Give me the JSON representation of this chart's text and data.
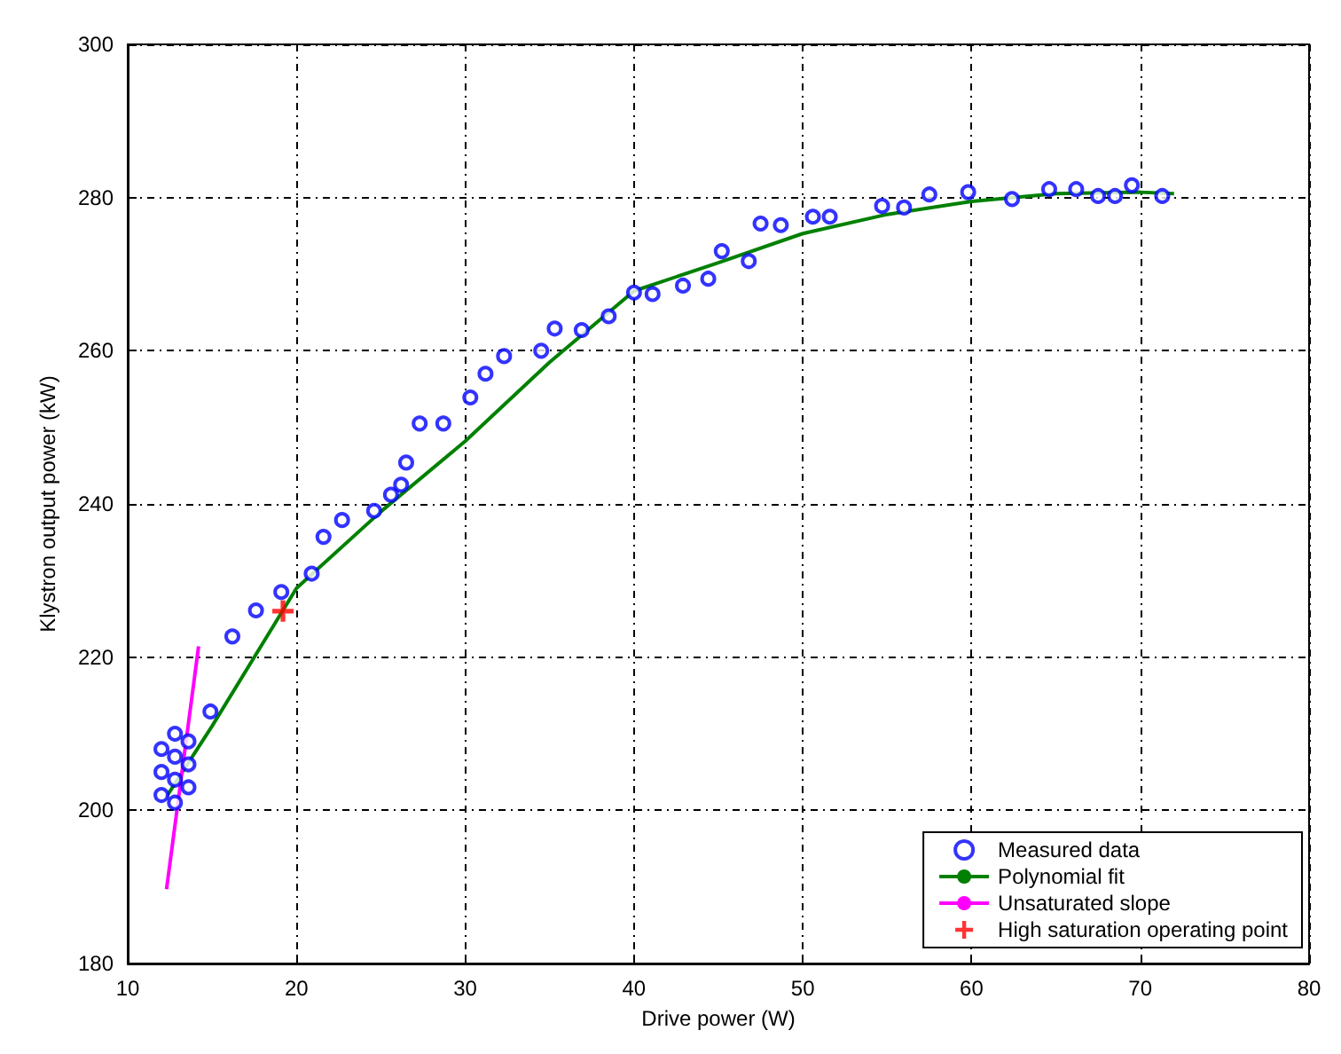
{
  "chart_data": {
    "type": "scatter",
    "xlabel": "Drive power (W)",
    "ylabel": "Klystron output power (kW)",
    "xlim": [
      10,
      80
    ],
    "xticks": [
      10,
      20,
      30,
      40,
      50,
      60,
      70,
      80
    ],
    "ylim": [
      180,
      300
    ],
    "yticks": [
      180,
      200,
      220,
      240,
      260,
      280,
      300
    ],
    "grid": true,
    "legend": "bottom right",
    "series": [
      {
        "name": "Measured data",
        "marker": "circle",
        "color": "#0000ff",
        "x": [
          12.0,
          12.0,
          12.0,
          12.8,
          12.8,
          12.8,
          12.8,
          13.6,
          13.6,
          13.6,
          14.9,
          16.2,
          17.6,
          19.1,
          20.9,
          21.6,
          22.7,
          24.6,
          25.6,
          26.2,
          26.5,
          27.3,
          28.7,
          30.3,
          31.2,
          32.3,
          34.5,
          35.3,
          36.9,
          38.5,
          40.0,
          41.1,
          42.9,
          44.4,
          45.2,
          46.8,
          47.5,
          48.7,
          50.6,
          51.6,
          54.7,
          56.0,
          57.5,
          59.8,
          62.4,
          64.6,
          66.2,
          67.5,
          68.5,
          69.5,
          71.3
        ],
        "values": [
          202,
          205,
          208,
          201,
          204,
          207,
          210,
          203,
          206,
          209,
          212.9,
          222.7,
          226.1,
          228.5,
          230.9,
          235.7,
          237.9,
          239.1,
          241.2,
          242.5,
          245.4,
          250.5,
          250.5,
          253.9,
          257.0,
          259.3,
          260.0,
          262.9,
          262.7,
          264.5,
          267.6,
          267.4,
          268.5,
          269.4,
          273.0,
          271.7,
          276.6,
          276.4,
          277.5,
          277.5,
          278.9,
          278.7,
          280.4,
          280.7,
          279.8,
          281.1,
          281.1,
          280.2,
          280.2,
          281.6,
          280.2
        ]
      },
      {
        "name": "Polynomial fit",
        "type": "line",
        "marker": "none",
        "line_style": "solid",
        "color": "#008000",
        "x": [
          12.3,
          15,
          20,
          25,
          30,
          35,
          40,
          45,
          50,
          55,
          60,
          65,
          70,
          72
        ],
        "values": [
          201.8,
          211,
          229,
          239,
          248.2,
          258.5,
          267.8,
          271.5,
          275.3,
          277.8,
          279.5,
          280.5,
          280.7,
          280.5
        ]
      },
      {
        "name": "Unsaturated slope",
        "type": "line",
        "marker": "none",
        "line_style": "solid",
        "color": "#ff00ff",
        "x": [
          12.3,
          14.2
        ],
        "values": [
          189.7,
          221.4
        ]
      },
      {
        "name": "High saturation operating point",
        "type": "scatter",
        "marker": "cross",
        "color": "#ff0000",
        "x": [
          19.2
        ],
        "values": [
          226
        ]
      }
    ]
  }
}
